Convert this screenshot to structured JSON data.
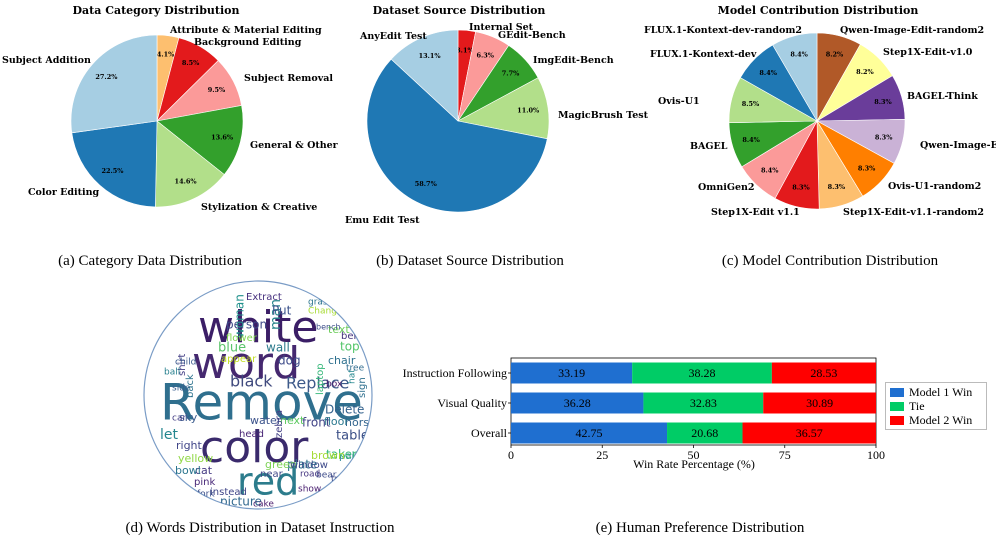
{
  "captions": {
    "a": "(a) Category Data Distribution",
    "b": "(b) Dataset Source Distribution",
    "c": "(c) Model Contribution Distribution",
    "d": "(d) Words Distribution in Dataset Instruction",
    "e": "(e) Human Preference Distribution"
  },
  "chart_data": [
    {
      "type": "pie",
      "title": "Data Category Distribution",
      "start_angle_deg": 90,
      "direction": "clockwise",
      "slices": [
        {
          "label": "Attribute & Material Editing",
          "value": 4.1,
          "pct_label": "4.1%",
          "color": "#fdbf6f"
        },
        {
          "label": "Background Editing",
          "value": 8.5,
          "pct_label": "8.5%",
          "color": "#e31a1c"
        },
        {
          "label": "Subject Removal",
          "value": 9.5,
          "pct_label": "9.5%",
          "color": "#fb9a99"
        },
        {
          "label": "General & Other",
          "value": 13.6,
          "pct_label": "13.6%",
          "color": "#33a02c"
        },
        {
          "label": "Stylization & Creative",
          "value": 14.6,
          "pct_label": "14.6%",
          "color": "#b2df8a"
        },
        {
          "label": "Color Editing",
          "value": 22.5,
          "pct_label": "22.5%",
          "color": "#1f78b4"
        },
        {
          "label": "Subject Addition",
          "value": 27.2,
          "pct_label": "27.2%",
          "color": "#a6cee3"
        }
      ]
    },
    {
      "type": "pie",
      "title": "Dataset Source Distribution",
      "start_angle_deg": 90,
      "direction": "clockwise",
      "slices": [
        {
          "label": "Internal Set",
          "value": 3.1,
          "pct_label": "3.1%",
          "color": "#e31a1c"
        },
        {
          "label": "GEdit-Bench",
          "value": 6.3,
          "pct_label": "6.3%",
          "color": "#fb9a99"
        },
        {
          "label": "ImgEdit-Bench",
          "value": 7.7,
          "pct_label": "7.7%",
          "color": "#33a02c"
        },
        {
          "label": "MagicBrush Test",
          "value": 11.0,
          "pct_label": "11.0%",
          "color": "#b2df8a"
        },
        {
          "label": "Emu Edit Test",
          "value": 58.7,
          "pct_label": "58.7%",
          "color": "#1f78b4"
        },
        {
          "label": "AnyEdit Test",
          "value": 13.1,
          "pct_label": "13.1%",
          "color": "#a6cee3"
        }
      ]
    },
    {
      "type": "pie",
      "title": "Model Contribution Distribution",
      "start_angle_deg": 90,
      "direction": "clockwise",
      "slices": [
        {
          "label": "Qwen-Image-Edit-random2",
          "value": 8.2,
          "pct_label": "8.2%",
          "color": "#b15928"
        },
        {
          "label": "Step1X-Edit-v1.0",
          "value": 8.2,
          "pct_label": "8.2%",
          "color": "#ffff99"
        },
        {
          "label": "BAGEL-Think",
          "value": 8.3,
          "pct_label": "8.3%",
          "color": "#6a3d9a"
        },
        {
          "label": "Qwen-Image-Edit",
          "value": 8.3,
          "pct_label": "8.3%",
          "color": "#cab2d6"
        },
        {
          "label": "Ovis-U1-random2",
          "value": 8.3,
          "pct_label": "8.3%",
          "color": "#ff7f00"
        },
        {
          "label": "Step1X-Edit-v1.1-random2",
          "value": 8.3,
          "pct_label": "8.3%",
          "color": "#fdbf6f"
        },
        {
          "label": "Step1X-Edit v1.1",
          "value": 8.3,
          "pct_label": "8.3%",
          "color": "#e31a1c"
        },
        {
          "label": "OmniGen2",
          "value": 8.4,
          "pct_label": "8.4%",
          "color": "#fb9a99"
        },
        {
          "label": "BAGEL",
          "value": 8.4,
          "pct_label": "8.4%",
          "color": "#33a02c"
        },
        {
          "label": "Ovis-U1",
          "value": 8.5,
          "pct_label": "8.5%",
          "color": "#b2df8a"
        },
        {
          "label": "FLUX.1-Kontext-dev",
          "value": 8.4,
          "pct_label": "8.4%",
          "color": "#1f78b4"
        },
        {
          "label": "FLUX.1-Kontext-dev-random2",
          "value": 8.4,
          "pct_label": "8.4%",
          "color": "#a6cee3"
        }
      ]
    },
    {
      "type": "other",
      "subtype": "wordcloud",
      "words": [
        {
          "text": "white",
          "color": "#3b1e66"
        },
        {
          "text": "word",
          "color": "#45286f"
        },
        {
          "text": "Remove",
          "color": "#2f6f8e"
        },
        {
          "text": "color",
          "color": "#3a2a6c"
        },
        {
          "text": "red",
          "color": "#2c7c8c"
        },
        {
          "text": "Replace",
          "color": "#3e5a8a"
        },
        {
          "text": "black",
          "color": "#404a7e"
        },
        {
          "text": "table",
          "color": "#3b4f86"
        },
        {
          "text": "blue",
          "color": "#5bc46b"
        },
        {
          "text": "wall",
          "color": "#2b7a8c"
        },
        {
          "text": "person",
          "color": "#3f4988"
        },
        {
          "text": "man",
          "color": "#29868c"
        },
        {
          "text": "Put",
          "color": "#3b528b"
        },
        {
          "text": "Delete",
          "color": "#33628d"
        },
        {
          "text": "text",
          "color": "#6ccd5a"
        },
        {
          "text": "top",
          "color": "#52c569"
        },
        {
          "text": "horse",
          "color": "#32648e"
        },
        {
          "text": "chair",
          "color": "#2d708e"
        },
        {
          "text": "behind",
          "color": "#46337e"
        },
        {
          "text": "painting",
          "color": "#26828e"
        },
        {
          "text": "dog",
          "color": "#3e4c8a"
        },
        {
          "text": "front",
          "color": "#414487"
        },
        {
          "text": "floor",
          "color": "#2a788e"
        },
        {
          "text": "water",
          "color": "#3b528b"
        },
        {
          "text": "next",
          "color": "#5ec962"
        },
        {
          "text": "taken",
          "color": "#35b779"
        },
        {
          "text": "plate",
          "color": "#2c728e"
        },
        {
          "text": "green",
          "color": "#7ad151"
        },
        {
          "text": "window",
          "color": "#3e4a89"
        },
        {
          "text": "brown",
          "color": "#a5db36"
        },
        {
          "text": "yellow",
          "color": "#8fd744"
        },
        {
          "text": "cat",
          "color": "#443983"
        },
        {
          "text": "near",
          "color": "#3f4788"
        },
        {
          "text": "pink",
          "color": "#482878"
        },
        {
          "text": "picture",
          "color": "#31688e"
        },
        {
          "text": "instead",
          "color": "#404688"
        },
        {
          "text": "bowl",
          "color": "#2b758e"
        },
        {
          "text": "zebra",
          "color": "#423f85"
        },
        {
          "text": "right",
          "color": "#404588"
        },
        {
          "text": "sky",
          "color": "#38598c"
        },
        {
          "text": "appear",
          "color": "#c2df23"
        },
        {
          "text": "Extract",
          "color": "#46307e"
        },
        {
          "text": "woman",
          "color": "#21918c"
        },
        {
          "text": "laptop",
          "color": "#35b779"
        },
        {
          "text": "head",
          "color": "#482475"
        },
        {
          "text": "seem",
          "color": "#25ab82"
        },
        {
          "text": "train",
          "color": "#3f4889"
        },
        {
          "text": "side",
          "color": "#365c8d"
        },
        {
          "text": "back",
          "color": "#2c728e"
        },
        {
          "text": "shirt",
          "color": "#433e85"
        },
        {
          "text": "Change",
          "color": "#a8db34"
        },
        {
          "text": "bench",
          "color": "#3d4e8a"
        },
        {
          "text": "car",
          "color": "#433d84"
        },
        {
          "text": "tree",
          "color": "#2f6b8e"
        },
        {
          "text": "sign",
          "color": "#2e6f8e"
        },
        {
          "text": "hat",
          "color": "#24878e"
        },
        {
          "text": "box",
          "color": "#481467"
        },
        {
          "text": "bear",
          "color": "#3e4c8a"
        },
        {
          "text": "ball",
          "color": "#27808e"
        },
        {
          "text": "flower",
          "color": "#7fd34e"
        },
        {
          "text": "let",
          "color": "#24868e"
        },
        {
          "text": "grass",
          "color": "#2b748e"
        },
        {
          "text": "road",
          "color": "#453581"
        },
        {
          "text": "fork",
          "color": "#3c4f8a"
        },
        {
          "text": "show",
          "color": "#481d6f"
        },
        {
          "text": "cake",
          "color": "#48196b"
        },
        {
          "text": "child",
          "color": "#38588c"
        }
      ]
    },
    {
      "type": "bar",
      "orientation": "horizontal",
      "stacked": true,
      "categories": [
        "Instruction Following",
        "Visual Quality",
        "Overall"
      ],
      "series": [
        {
          "name": "Model 1 Win",
          "color": "#1f6fd0",
          "values": [
            33.19,
            36.28,
            42.75
          ]
        },
        {
          "name": "Tie",
          "color": "#00cc66",
          "values": [
            38.28,
            32.83,
            20.68
          ]
        },
        {
          "name": "Model 2 Win",
          "color": "#ff0000",
          "values": [
            28.53,
            30.89,
            36.57
          ]
        }
      ],
      "xlabel": "Win Rate Percentage (%)",
      "xlim": [
        0,
        100
      ],
      "xticks": [
        "0",
        "25",
        "50",
        "75",
        "100"
      ],
      "legend": "right"
    }
  ]
}
